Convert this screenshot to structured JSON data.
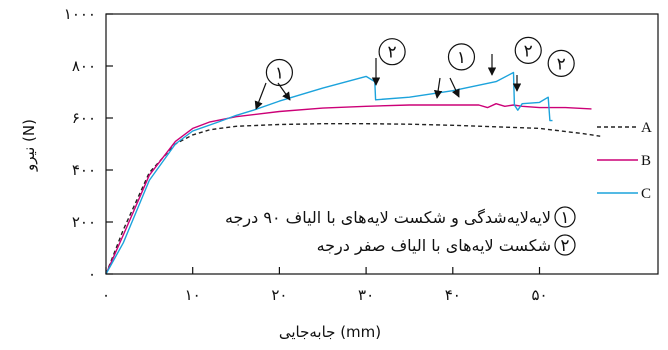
{
  "chart_data": {
    "type": "line",
    "xlabel": "جابه‌جایی (mm)",
    "ylabel": "نیرو (N)",
    "xlim": [
      0,
      65
    ],
    "ylim": [
      0,
      1000
    ],
    "xticks": [
      0,
      10,
      20,
      30,
      40,
      50
    ],
    "xtick_labels": [
      "۰",
      "۱۰",
      "۲۰",
      "۳۰",
      "۴۰",
      "۵۰"
    ],
    "yticks": [
      0,
      200,
      400,
      600,
      800,
      1000
    ],
    "ytick_labels": [
      "۰",
      "۲۰۰",
      "۴۰۰",
      "۶۰۰",
      "۸۰۰",
      "۱۰۰۰"
    ],
    "grid": false,
    "legend_placement": "right",
    "series": [
      {
        "name": "A",
        "color": "#222222",
        "dash": "dashed",
        "x": [
          0,
          2,
          5,
          8,
          10,
          12,
          15,
          20,
          25,
          30,
          35,
          40,
          45,
          50,
          55,
          57
        ],
        "y": [
          0,
          170,
          390,
          500,
          535,
          555,
          568,
          575,
          578,
          578,
          576,
          572,
          566,
          560,
          540,
          530
        ]
      },
      {
        "name": "B",
        "color": "#cc0077",
        "dash": "solid",
        "x": [
          0,
          2,
          5,
          8,
          10,
          12,
          15,
          20,
          25,
          30,
          35,
          40,
          43,
          44,
          45,
          46,
          47,
          48,
          50,
          53,
          56
        ],
        "y": [
          0,
          150,
          380,
          510,
          560,
          585,
          605,
          625,
          638,
          645,
          650,
          650,
          650,
          640,
          655,
          645,
          650,
          645,
          640,
          640,
          635
        ]
      },
      {
        "name": "C",
        "color": "#1ca3dc",
        "dash": "solid",
        "x": [
          0,
          2,
          5,
          8,
          10,
          13,
          15,
          17,
          20,
          25,
          30,
          31,
          31.1,
          35,
          40,
          45,
          47,
          47.1,
          47.5,
          48,
          50,
          51,
          51.2,
          51.5
        ],
        "y": [
          0,
          120,
          360,
          500,
          550,
          585,
          610,
          630,
          665,
          715,
          760,
          740,
          670,
          680,
          705,
          740,
          775,
          650,
          630,
          655,
          660,
          680,
          590,
          590
        ]
      }
    ],
    "markers": [
      {
        "label": "۱",
        "x": 20,
        "y": 775
      },
      {
        "label": "۲",
        "x": 33,
        "y": 855
      },
      {
        "label": "۱",
        "x": 41,
        "y": 835
      },
      {
        "label": "۲",
        "x": 48.7,
        "y": 860
      },
      {
        "label": "۲",
        "x": 52.5,
        "y": 810
      }
    ],
    "annotations": [
      {
        "marker": "۱",
        "text": "لایه‌لایه‌شدگی و شکست لایه‌های با الیاف ۹۰ درجه"
      },
      {
        "marker": "۲",
        "text": "شکست لایه‌های با الیاف صفر درجه"
      }
    ]
  }
}
